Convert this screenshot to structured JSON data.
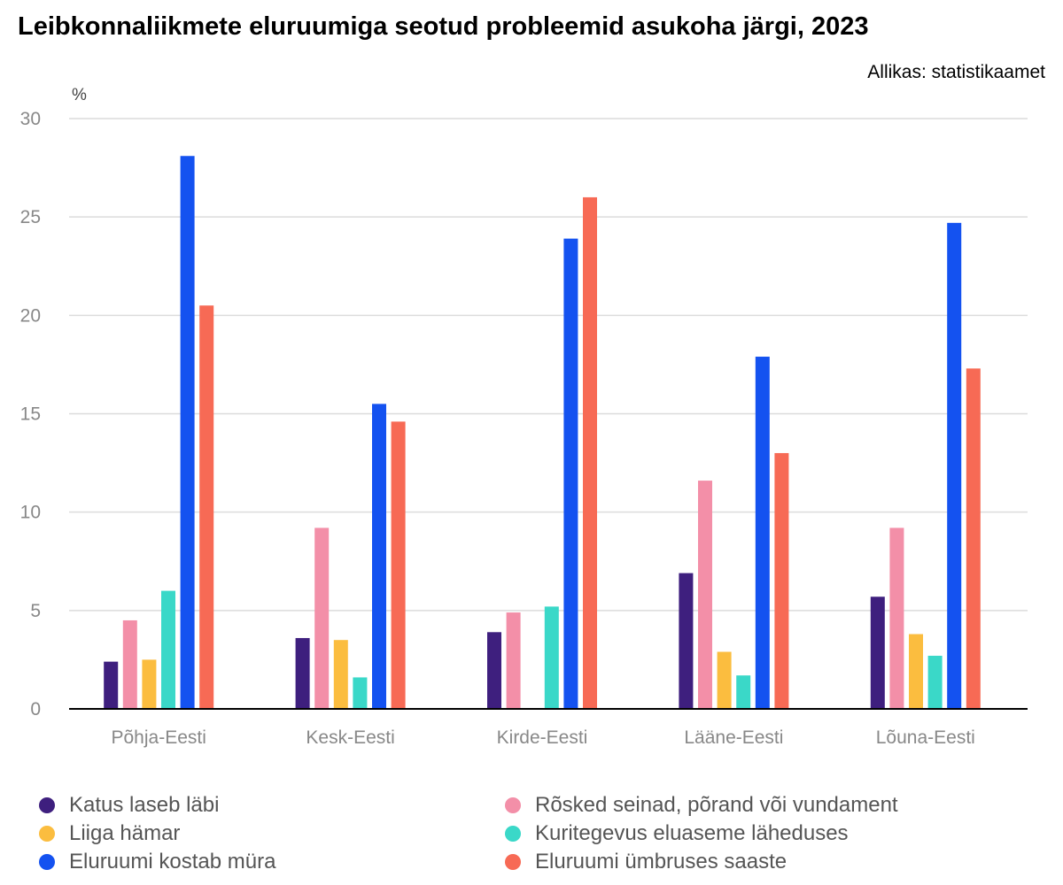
{
  "title": "Leibkonnaliikmete eluruumiga seotud probleemid asukoha järgi, 2023",
  "source": "Allikas: statistikaamet",
  "chart_data": {
    "type": "bar",
    "title": "Leibkonnaliikmete eluruumiga seotud probleemid asukoha järgi, 2023",
    "xlabel": "",
    "ylabel": "%",
    "ylim": [
      0,
      30
    ],
    "yticks": [
      0,
      5,
      10,
      15,
      20,
      25,
      30
    ],
    "grid": true,
    "legend_position": "bottom",
    "categories": [
      "Põhja-Eesti",
      "Kesk-Eesti",
      "Kirde-Eesti",
      "Lääne-Eesti",
      "Lõuna-Eesti"
    ],
    "series": [
      {
        "name": "Katus laseb läbi",
        "color": "#3e1f7e",
        "values": [
          2.4,
          3.6,
          3.9,
          6.9,
          5.7
        ]
      },
      {
        "name": "Rõsked seinad, põrand või vundament",
        "color": "#f38fa8",
        "values": [
          4.5,
          9.2,
          4.9,
          11.6,
          9.2
        ]
      },
      {
        "name": "Liiga hämar",
        "color": "#fbbd3f",
        "values": [
          2.5,
          3.5,
          null,
          2.9,
          3.8
        ]
      },
      {
        "name": "Kuritegevus eluaseme läheduses",
        "color": "#3ad8c8",
        "values": [
          6.0,
          1.6,
          5.2,
          1.7,
          2.7
        ]
      },
      {
        "name": "Eluruumi kostab müra",
        "color": "#1452f0",
        "values": [
          28.1,
          15.5,
          23.9,
          17.9,
          24.7
        ]
      },
      {
        "name": "Eluruumi ümbruses saaste",
        "color": "#f76a55",
        "values": [
          20.5,
          14.6,
          26.0,
          13.0,
          17.3
        ]
      }
    ]
  }
}
